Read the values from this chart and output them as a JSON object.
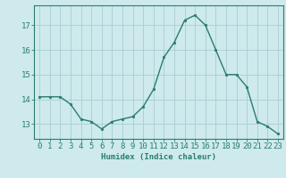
{
  "x": [
    0,
    1,
    2,
    3,
    4,
    5,
    6,
    7,
    8,
    9,
    10,
    11,
    12,
    13,
    14,
    15,
    16,
    17,
    18,
    19,
    20,
    21,
    22,
    23
  ],
  "y": [
    14.1,
    14.1,
    14.1,
    13.8,
    13.2,
    13.1,
    12.8,
    13.1,
    13.2,
    13.3,
    13.7,
    14.4,
    15.7,
    16.3,
    17.2,
    17.4,
    17.0,
    16.0,
    15.0,
    15.0,
    14.5,
    13.1,
    12.9,
    12.6
  ],
  "line_color": "#2a7d6e",
  "marker": "o",
  "marker_size": 1.8,
  "bg_color": "#ceeaec",
  "grid_color": "#aacdd4",
  "axis_color": "#2a7d6e",
  "tick_color": "#2a7d6e",
  "xlabel": "Humidex (Indice chaleur)",
  "xlabel_fontsize": 6.5,
  "ylim": [
    12.4,
    17.8
  ],
  "yticks": [
    13,
    14,
    15,
    16,
    17
  ],
  "tick_fontsize": 6.5,
  "line_width": 1.0
}
